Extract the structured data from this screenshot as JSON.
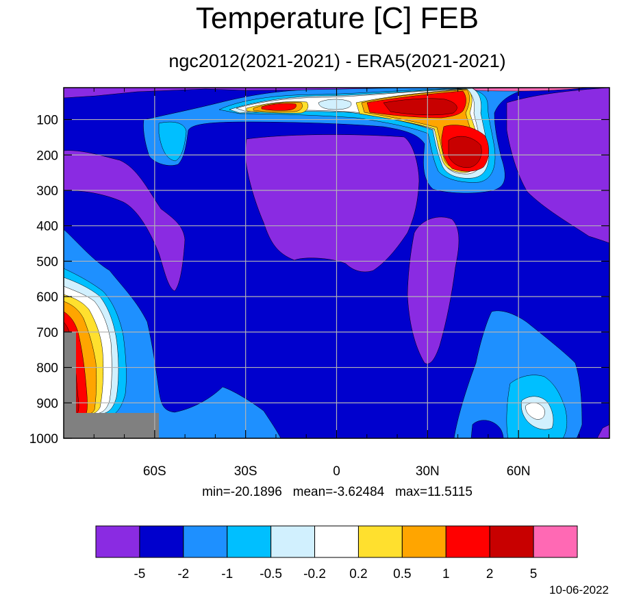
{
  "title": "Temperature [C] FEB",
  "subtitle": "ngc2012(2021-2021) - ERA5(2021-2021)",
  "stats_text": "min=-20.1896   mean=-3.62484   max=11.5115",
  "date": "10-06-2022",
  "chart_data": {
    "type": "heatmap",
    "title": "Temperature [C] FEB",
    "subtitle": "ngc2012(2021-2021) - ERA5(2021-2021)",
    "stats": {
      "min": -20.1896,
      "mean": -3.62484,
      "max": 11.5115
    },
    "x_axis": {
      "range": [
        -90,
        90
      ],
      "ticks": [
        -60,
        -30,
        0,
        30,
        60
      ],
      "tick_labels": [
        "60S",
        "30S",
        "0",
        "30N",
        "60N"
      ]
    },
    "y_axis": {
      "range": [
        1000,
        10
      ],
      "reversed": true,
      "ticks": [
        100,
        200,
        300,
        400,
        500,
        600,
        700,
        800,
        900,
        1000
      ],
      "tick_labels": [
        "100",
        "200",
        "300",
        "400",
        "500",
        "600",
        "700",
        "800",
        "900",
        "1000"
      ]
    },
    "grid": true,
    "colorbar": {
      "levels": [
        -5,
        -2,
        -1,
        -0.5,
        -0.2,
        0.2,
        0.5,
        1,
        2,
        5
      ],
      "labels": [
        "-5",
        "-2",
        "-1",
        "-0.5",
        "-0.2",
        "0.2",
        "0.5",
        "1",
        "2",
        "5"
      ],
      "colors": [
        "#8a2be2",
        "#0000cd",
        "#1e90ff",
        "#00bfff",
        "#d1f0fe",
        "#ffffff",
        "#ffe02e",
        "#ffa500",
        "#ff0000",
        "#c80000",
        "#ff69b4"
      ]
    },
    "missing_color": "#808080"
  }
}
